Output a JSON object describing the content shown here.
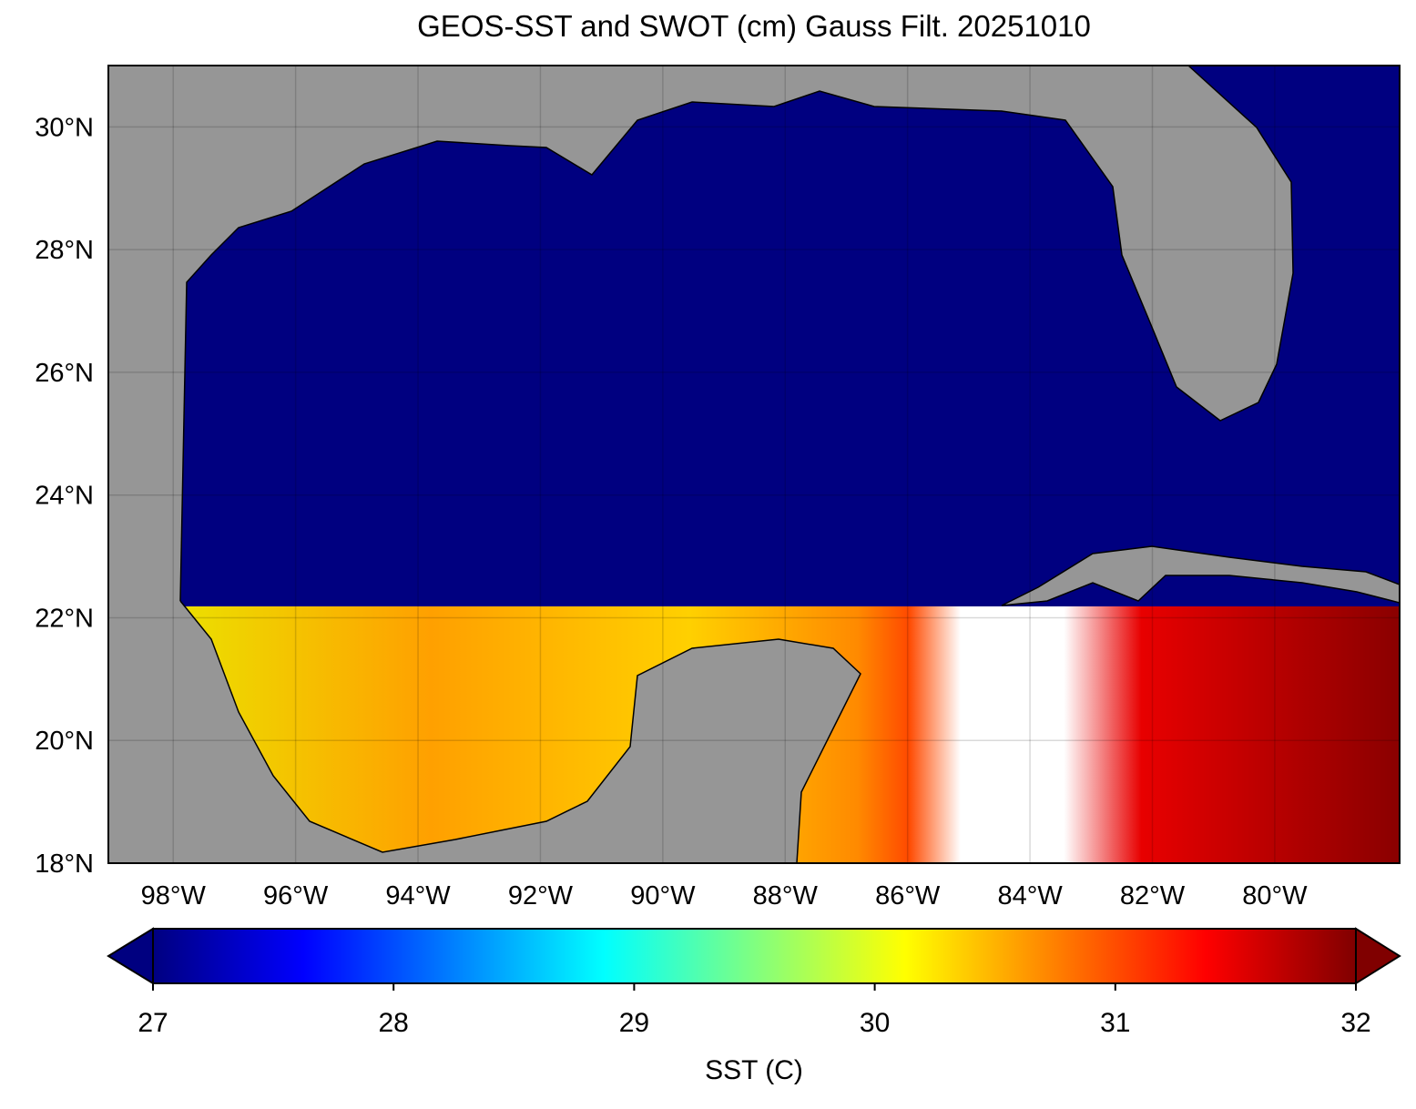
{
  "chart_data": {
    "type": "map",
    "title": "GEOS-SST  and SWOT (cm) Gauss Filt. 20251010",
    "xlim": [
      -99.06,
      -77.96
    ],
    "ylim": [
      18,
      31
    ],
    "xticks": [
      {
        "value": -98,
        "label": "98°W"
      },
      {
        "value": -96,
        "label": "96°W"
      },
      {
        "value": -94,
        "label": "94°W"
      },
      {
        "value": -92,
        "label": "92°W"
      },
      {
        "value": -90,
        "label": "90°W"
      },
      {
        "value": -88,
        "label": "88°W"
      },
      {
        "value": -86,
        "label": "86°W"
      },
      {
        "value": -84,
        "label": "84°W"
      },
      {
        "value": -82,
        "label": "82°W"
      },
      {
        "value": -80,
        "label": "80°W"
      }
    ],
    "yticks": [
      {
        "value": 18,
        "label": "18°N"
      },
      {
        "value": 20,
        "label": "20°N"
      },
      {
        "value": 22,
        "label": "22°N"
      },
      {
        "value": 24,
        "label": "24°N"
      },
      {
        "value": 26,
        "label": "26°N"
      },
      {
        "value": 28,
        "label": "28°N"
      },
      {
        "value": 30,
        "label": "30°N"
      }
    ],
    "grid": true,
    "colormap": "jet",
    "colorbar": {
      "label": "SST (C)",
      "clim": [
        27,
        32
      ],
      "ticks": [
        27,
        28,
        29,
        30,
        31,
        32
      ]
    }
  }
}
